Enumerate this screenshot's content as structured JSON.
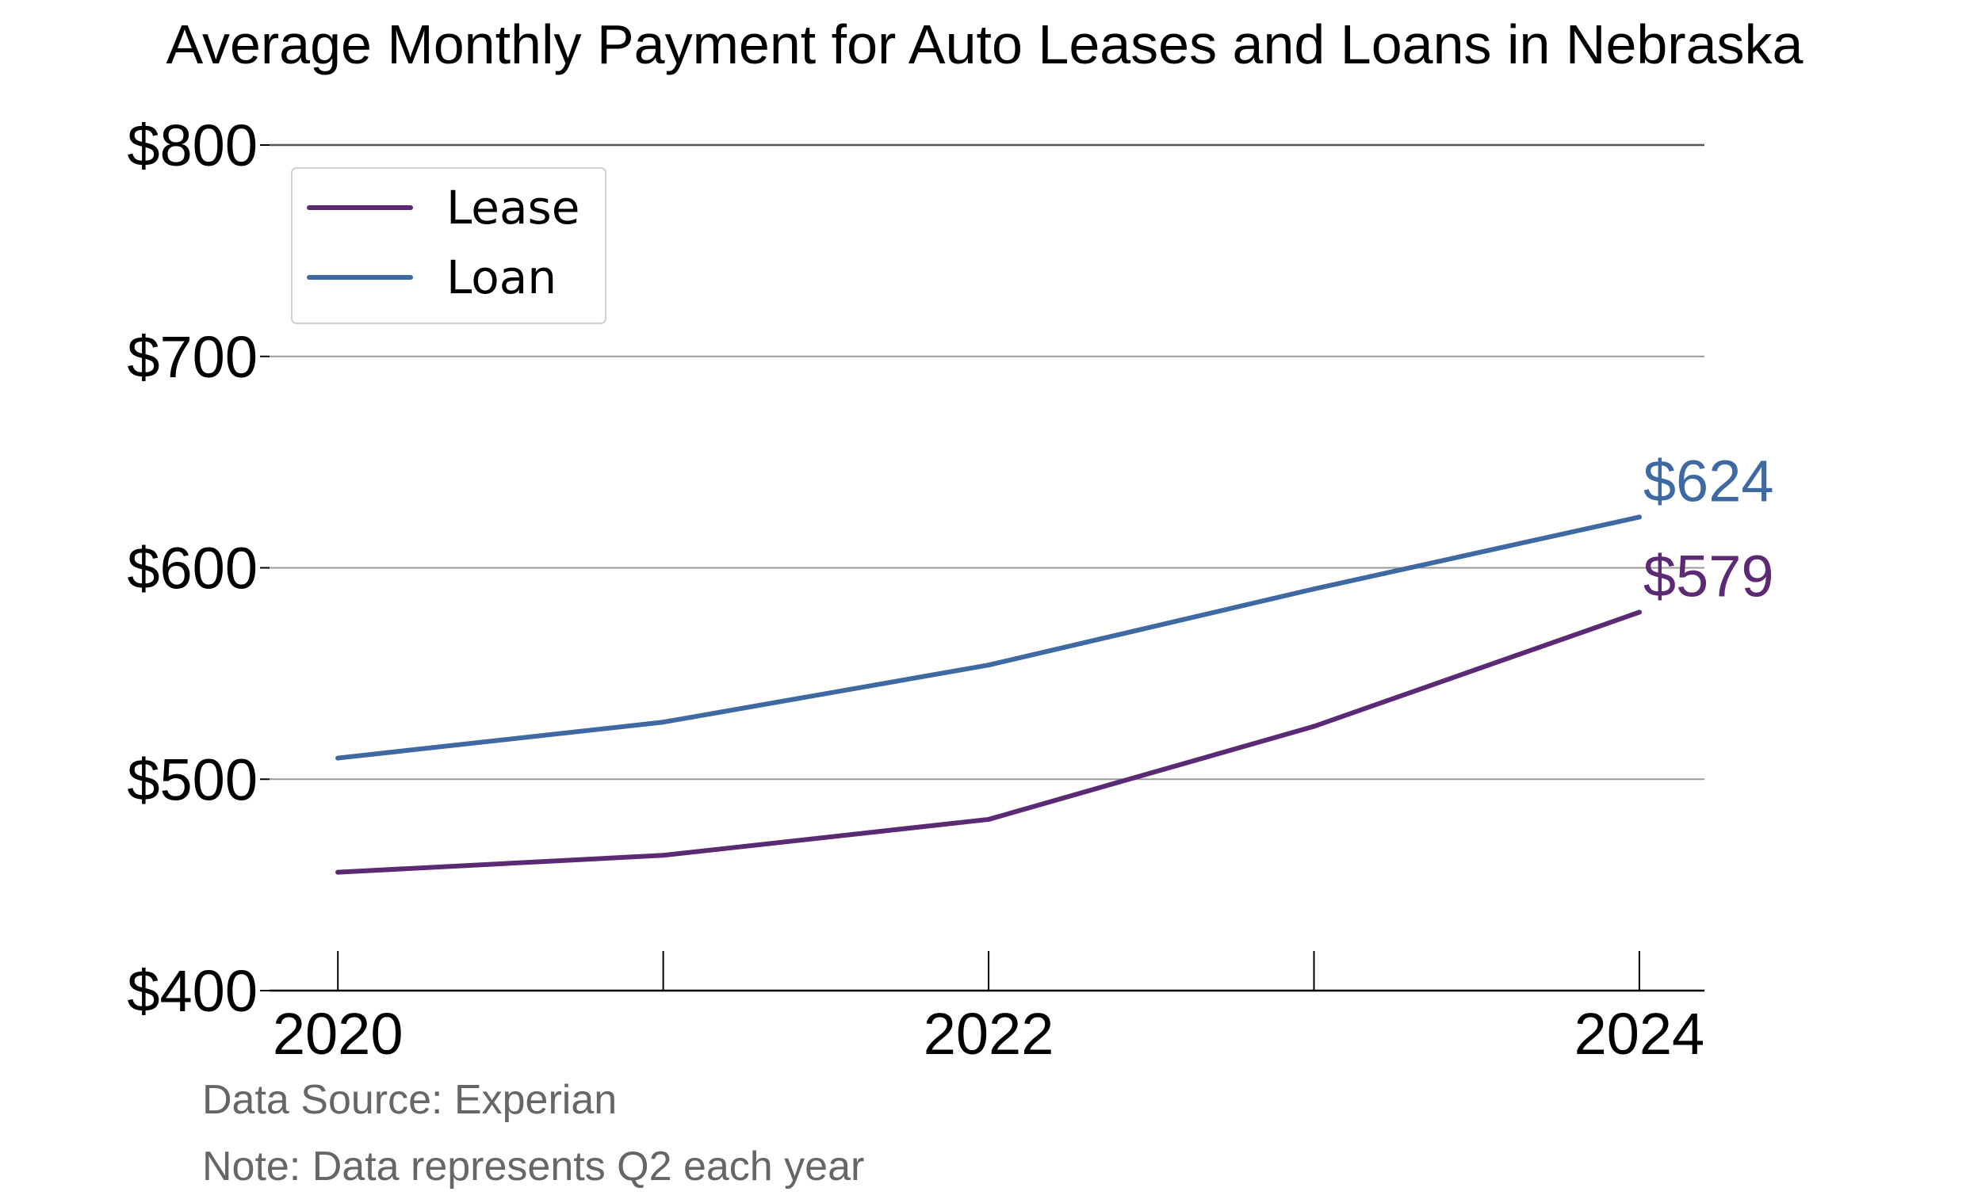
{
  "chart_data": {
    "type": "line",
    "title": "Average Monthly Payment for Auto Leases and Loans in Nebraska",
    "x": [
      2020,
      2021,
      2022,
      2023,
      2024
    ],
    "x_tick_labels": [
      "2020",
      "2022",
      "2024"
    ],
    "x_tick_values": [
      2020,
      2022,
      2024
    ],
    "xlim": [
      2019.79,
      2024.2
    ],
    "ylim": [
      400,
      800
    ],
    "y_ticks": [
      400,
      500,
      600,
      700,
      800
    ],
    "y_tick_labels": [
      "$400",
      "$500",
      "$600",
      "$700",
      "$800"
    ],
    "grid": "horizontal",
    "legend_position": "top-left",
    "series": [
      {
        "name": "Lease",
        "color": "#5c2a74",
        "values": [
          456,
          464,
          481,
          525,
          579
        ],
        "end_label": "$579"
      },
      {
        "name": "Loan",
        "color": "#3f69a3",
        "values": [
          510,
          527,
          554,
          590,
          624
        ],
        "end_label": "$624"
      }
    ],
    "notes": [
      "Data Source: Experian",
      "Note: Data represents Q2 each year"
    ]
  }
}
